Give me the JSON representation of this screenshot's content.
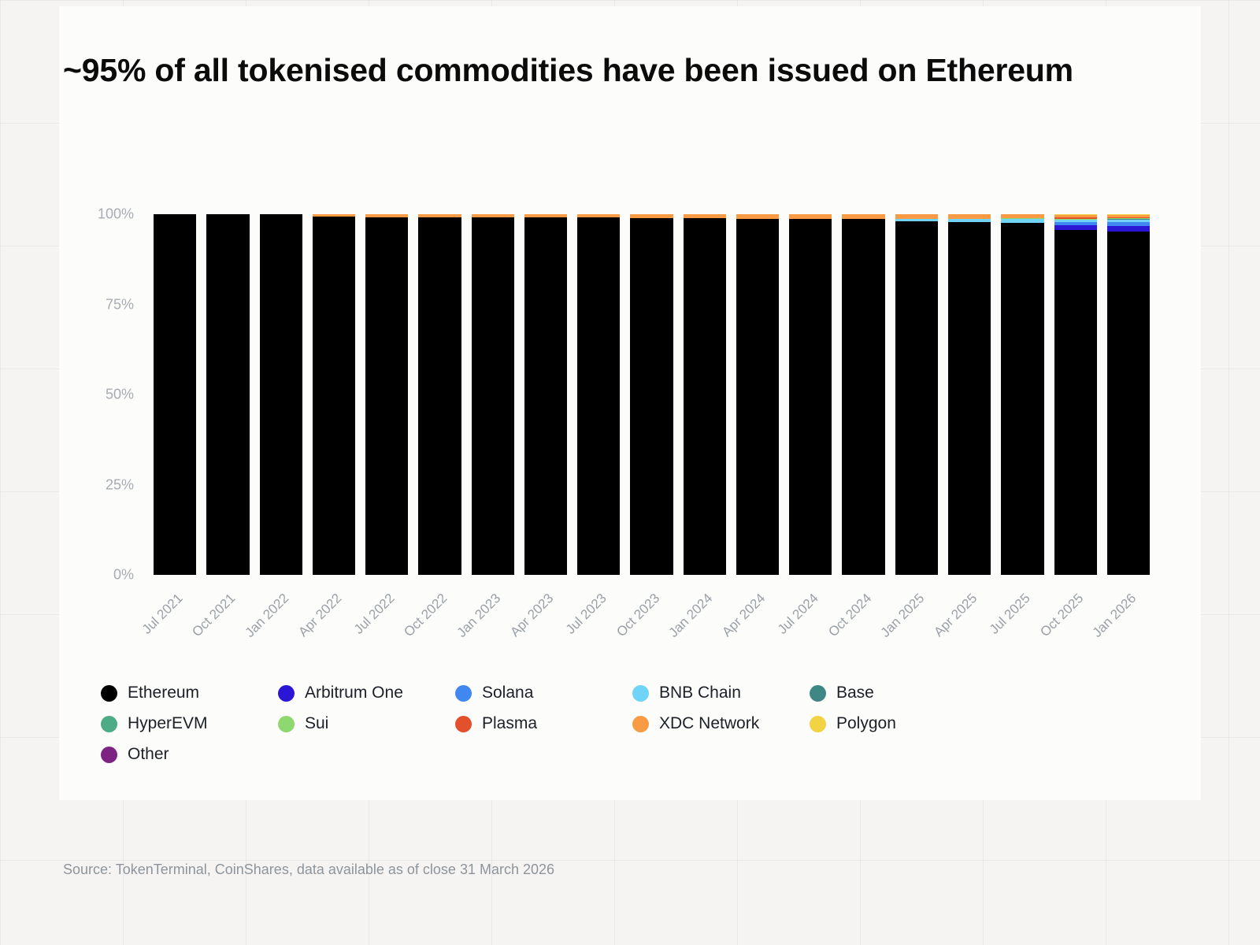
{
  "title": "~95% of all tokenised commodities have been issued on Ethereum",
  "source": "Source: TokenTerminal, CoinShares, data available as of close 31 March 2026",
  "axes": {
    "yticks": [
      "0%",
      "25%",
      "50%",
      "75%",
      "100%"
    ]
  },
  "chart_data": {
    "type": "bar",
    "stacked": true,
    "unit": "percent",
    "title": "~95% of all tokenised commodities have been issued on Ethereum",
    "xlabel": "",
    "ylabel": "",
    "ylim": [
      0,
      100
    ],
    "grid": false,
    "legend_position": "bottom",
    "categories": [
      "Jul 2021",
      "Oct 2021",
      "Jan 2022",
      "Apr 2022",
      "Jul 2022",
      "Oct 2022",
      "Jan 2023",
      "Apr 2023",
      "Jul 2023",
      "Oct 2023",
      "Jan 2024",
      "Apr 2024",
      "Jul 2024",
      "Oct 2024",
      "Jan 2025",
      "Apr 2025",
      "Jul 2025",
      "Oct 2025",
      "Jan 2026"
    ],
    "series": [
      {
        "name": "Ethereum",
        "color": "#000000",
        "values": [
          100,
          100,
          100,
          99.3,
          99.2,
          99.2,
          99.2,
          99.2,
          99.1,
          98.9,
          98.9,
          98.8,
          98.8,
          98.8,
          98.1,
          97.9,
          97.7,
          95.7,
          95.2
        ]
      },
      {
        "name": "Arbitrum One",
        "color": "#2a16d4",
        "values": [
          0,
          0,
          0,
          0,
          0,
          0,
          0,
          0,
          0,
          0,
          0,
          0,
          0,
          0,
          0,
          0,
          0,
          1.3,
          1.6
        ]
      },
      {
        "name": "Solana",
        "color": "#4187f2",
        "values": [
          0,
          0,
          0,
          0,
          0,
          0,
          0,
          0,
          0,
          0,
          0,
          0,
          0,
          0,
          0,
          0,
          0,
          0.8,
          1.0
        ]
      },
      {
        "name": "BNB Chain",
        "color": "#6fd4f7",
        "values": [
          0,
          0,
          0,
          0,
          0,
          0,
          0,
          0,
          0,
          0,
          0,
          0,
          0,
          0,
          0.7,
          0.8,
          0.9,
          0.6,
          0.6
        ]
      },
      {
        "name": "Base",
        "color": "#3f8785",
        "values": [
          0,
          0,
          0,
          0,
          0,
          0,
          0,
          0,
          0,
          0,
          0,
          0,
          0,
          0,
          0,
          0.1,
          0.1,
          0.1,
          0.2
        ]
      },
      {
        "name": "HyperEVM",
        "color": "#4dab86",
        "values": [
          0,
          0,
          0,
          0,
          0,
          0,
          0,
          0,
          0,
          0,
          0,
          0,
          0,
          0,
          0,
          0,
          0,
          0,
          0.2
        ]
      },
      {
        "name": "Sui",
        "color": "#8ed96f",
        "values": [
          0,
          0,
          0,
          0,
          0,
          0,
          0,
          0,
          0,
          0,
          0,
          0,
          0,
          0,
          0,
          0,
          0.2,
          0.2,
          0.2
        ]
      },
      {
        "name": "Plasma",
        "color": "#e2502c",
        "values": [
          0,
          0,
          0,
          0,
          0,
          0,
          0,
          0,
          0,
          0,
          0,
          0,
          0,
          0,
          0,
          0,
          0,
          0.4,
          0.2
        ]
      },
      {
        "name": "XDC Network",
        "color": "#f99b44",
        "values": [
          0,
          0,
          0,
          0.7,
          0.8,
          0.8,
          0.8,
          0.8,
          0.9,
          1.1,
          1.1,
          1.2,
          1.2,
          1.2,
          1.2,
          1.2,
          1.1,
          0.8,
          0.6
        ]
      },
      {
        "name": "Polygon",
        "color": "#f2d344",
        "values": [
          0,
          0,
          0,
          0,
          0,
          0,
          0,
          0,
          0,
          0,
          0,
          0,
          0,
          0,
          0,
          0,
          0,
          0.1,
          0.2
        ]
      },
      {
        "name": "Other",
        "color": "#7d2483",
        "values": [
          0,
          0,
          0,
          0,
          0,
          0,
          0,
          0,
          0,
          0,
          0,
          0,
          0,
          0,
          0,
          0,
          0,
          0,
          0
        ]
      }
    ]
  }
}
